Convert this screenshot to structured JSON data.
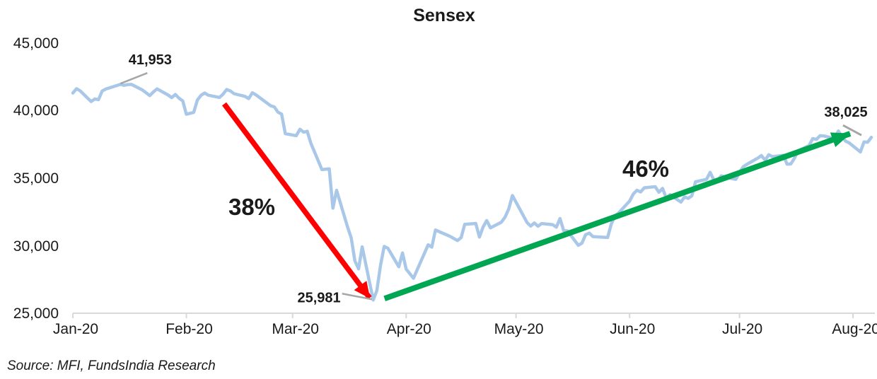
{
  "source": "Source: MFI, FundsIndia Research",
  "colors": {
    "line": "#A9C7E8",
    "decline": "#FF0000",
    "recovery": "#00A651",
    "leader": "#A6A6A6",
    "axis": "#D9D9D9",
    "text": "#1A1A1A"
  },
  "chart_data": {
    "type": "line",
    "title": "Sensex",
    "x_tick_labels": [
      "Jan-20",
      "Feb-20",
      "Mar-20",
      "Apr-20",
      "May-20",
      "Jun-20",
      "Jul-20",
      "Aug-20"
    ],
    "y_tick_labels": [
      "45,000",
      "40,000",
      "35,000",
      "30,000",
      "25,000"
    ],
    "ylim": [
      25000,
      45000
    ],
    "x_range": [
      "2020-01-01",
      "2020-08-06"
    ],
    "grid": false,
    "legend": false,
    "annotations": [
      {
        "id": "peak",
        "text": "41,953",
        "value": 41953,
        "date": "2020-01-14"
      },
      {
        "id": "trough",
        "text": "25,981",
        "value": 25981,
        "date": "2020-03-23"
      },
      {
        "id": "last",
        "text": "38,025",
        "value": 38025,
        "date": "2020-08-06"
      },
      {
        "id": "decline",
        "text": "38%",
        "desc": "fall from peak to trough",
        "color": "#FF0000"
      },
      {
        "id": "recovery",
        "text": "46%",
        "desc": "rise from trough to latest",
        "color": "#00A651"
      }
    ],
    "series": [
      {
        "name": "Sensex",
        "color": "#A9C7E8",
        "dates": [
          "2020-01-01",
          "2020-01-02",
          "2020-01-03",
          "2020-01-06",
          "2020-01-07",
          "2020-01-08",
          "2020-01-09",
          "2020-01-10",
          "2020-01-13",
          "2020-01-14",
          "2020-01-15",
          "2020-01-16",
          "2020-01-17",
          "2020-01-20",
          "2020-01-21",
          "2020-01-22",
          "2020-01-23",
          "2020-01-24",
          "2020-01-27",
          "2020-01-28",
          "2020-01-29",
          "2020-01-30",
          "2020-01-31",
          "2020-02-01",
          "2020-02-03",
          "2020-02-04",
          "2020-02-05",
          "2020-02-06",
          "2020-02-07",
          "2020-02-10",
          "2020-02-11",
          "2020-02-12",
          "2020-02-13",
          "2020-02-14",
          "2020-02-17",
          "2020-02-18",
          "2020-02-19",
          "2020-02-20",
          "2020-02-24",
          "2020-02-25",
          "2020-02-26",
          "2020-02-27",
          "2020-02-28",
          "2020-03-02",
          "2020-03-03",
          "2020-03-04",
          "2020-03-05",
          "2020-03-06",
          "2020-03-09",
          "2020-03-11",
          "2020-03-12",
          "2020-03-13",
          "2020-03-16",
          "2020-03-17",
          "2020-03-18",
          "2020-03-19",
          "2020-03-20",
          "2020-03-23",
          "2020-03-24",
          "2020-03-25",
          "2020-03-26",
          "2020-03-27",
          "2020-03-30",
          "2020-03-31",
          "2020-04-01",
          "2020-04-03",
          "2020-04-07",
          "2020-04-08",
          "2020-04-09",
          "2020-04-13",
          "2020-04-15",
          "2020-04-16",
          "2020-04-17",
          "2020-04-20",
          "2020-04-21",
          "2020-04-22",
          "2020-04-23",
          "2020-04-24",
          "2020-04-27",
          "2020-04-28",
          "2020-04-29",
          "2020-04-30",
          "2020-05-04",
          "2020-05-05",
          "2020-05-06",
          "2020-05-07",
          "2020-05-08",
          "2020-05-11",
          "2020-05-12",
          "2020-05-13",
          "2020-05-14",
          "2020-05-15",
          "2020-05-18",
          "2020-05-19",
          "2020-05-20",
          "2020-05-21",
          "2020-05-22",
          "2020-05-26",
          "2020-05-27",
          "2020-05-28",
          "2020-05-29",
          "2020-06-01",
          "2020-06-02",
          "2020-06-03",
          "2020-06-04",
          "2020-06-05",
          "2020-06-08",
          "2020-06-09",
          "2020-06-10",
          "2020-06-11",
          "2020-06-12",
          "2020-06-15",
          "2020-06-16",
          "2020-06-17",
          "2020-06-18",
          "2020-06-19",
          "2020-06-22",
          "2020-06-23",
          "2020-06-24",
          "2020-06-25",
          "2020-06-26",
          "2020-06-29",
          "2020-06-30",
          "2020-07-01",
          "2020-07-02",
          "2020-07-03",
          "2020-07-06",
          "2020-07-07",
          "2020-07-08",
          "2020-07-09",
          "2020-07-10",
          "2020-07-13",
          "2020-07-14",
          "2020-07-15",
          "2020-07-16",
          "2020-07-17",
          "2020-07-20",
          "2020-07-21",
          "2020-07-22",
          "2020-07-23",
          "2020-07-24",
          "2020-07-27",
          "2020-07-28",
          "2020-07-29",
          "2020-07-30",
          "2020-07-31",
          "2020-08-03",
          "2020-08-04",
          "2020-08-05",
          "2020-08-06"
        ],
        "values": [
          41306,
          41627,
          41465,
          40677,
          40869,
          40818,
          41452,
          41600,
          41860,
          41953,
          41873,
          41933,
          41945,
          41529,
          41324,
          41115,
          41386,
          41613,
          41155,
          40967,
          41199,
          40914,
          40723,
          39735,
          39872,
          40789,
          41143,
          41306,
          41142,
          40980,
          41216,
          41566,
          41460,
          41258,
          41056,
          40894,
          41323,
          41170,
          40363,
          40281,
          39889,
          39746,
          38297,
          38144,
          38624,
          38409,
          38471,
          37577,
          35635,
          35697,
          32778,
          34103,
          31390,
          30579,
          28870,
          28288,
          29916,
          25981,
          26674,
          28536,
          29947,
          29816,
          28440,
          29468,
          28265,
          27591,
          30067,
          29894,
          31160,
          30690,
          30380,
          30603,
          31589,
          31648,
          30637,
          31380,
          31863,
          31327,
          31743,
          32115,
          32720,
          33718,
          31715,
          31454,
          31686,
          31443,
          31643,
          31561,
          31371,
          32009,
          31123,
          31098,
          30029,
          30196,
          30819,
          30933,
          30673,
          30609,
          31605,
          32201,
          32424,
          33304,
          33826,
          34110,
          33981,
          34287,
          34371,
          33957,
          34247,
          33538,
          33781,
          33229,
          33605,
          33508,
          33697,
          34732,
          34911,
          35430,
          34869,
          34842,
          35171,
          34962,
          34916,
          35414,
          35844,
          36021,
          36487,
          36675,
          36329,
          36738,
          36594,
          36694,
          36033,
          36052,
          36472,
          37020,
          37419,
          37930,
          37872,
          38140,
          38129,
          37935,
          38493,
          38071,
          37736,
          37607,
          36940,
          37688,
          37663,
          38025
        ]
      }
    ]
  }
}
